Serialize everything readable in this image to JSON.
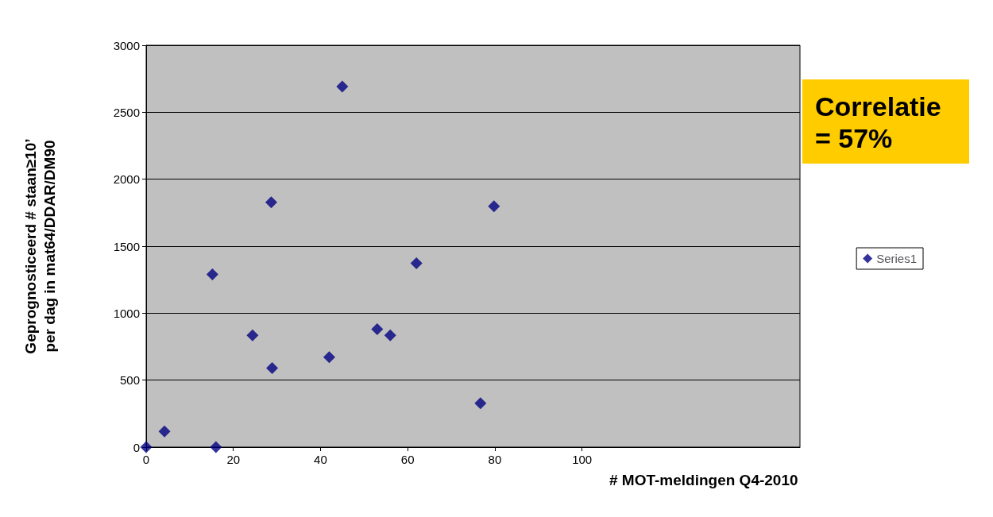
{
  "chart_data": {
    "type": "scatter",
    "xlabel": "# MOT-meldingen Q4-2010",
    "ylabel": "Geprognosticeerd # staan≥10’\nper dag in mat64/DDAR/DM90",
    "x": [
      0,
      4.2,
      15.2,
      16,
      24.4,
      28.7,
      28.9,
      42,
      45,
      53,
      56,
      62,
      76.7,
      79.8
    ],
    "series": [
      {
        "name": "Series1",
        "color": "#000080",
        "values": [
          0,
          117,
          1290,
          0,
          835,
          1827,
          590,
          671,
          2691,
          881,
          835,
          1372,
          327,
          1798
        ]
      }
    ],
    "xlim": [
      0,
      150
    ],
    "xticks": [
      0,
      20,
      40,
      60,
      80,
      100
    ],
    "ylim": [
      0,
      3000
    ],
    "yticks": [
      0,
      500,
      1000,
      1500,
      2000,
      2500,
      3000
    ],
    "grid": "y",
    "legend": "right",
    "marker": "diamond",
    "annotations": [
      "Correlatie\n= 57%"
    ]
  }
}
